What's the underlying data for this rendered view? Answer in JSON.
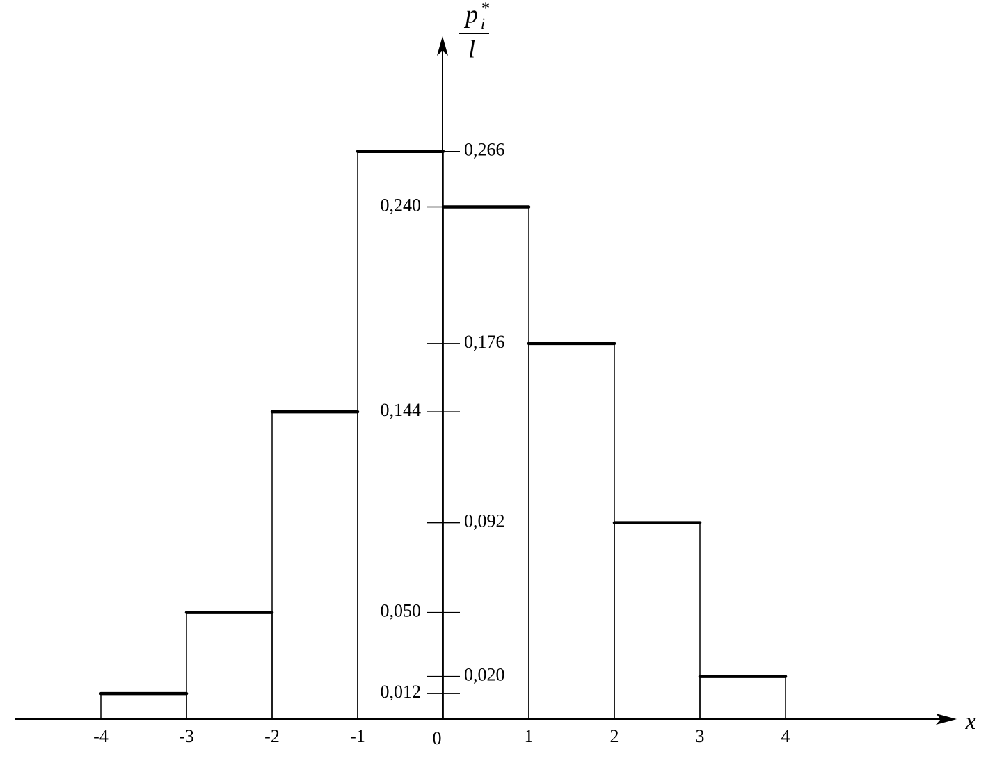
{
  "chart_data": {
    "type": "histogram",
    "bins": [
      -4,
      -3,
      -2,
      -1,
      0,
      1,
      2,
      3,
      4
    ],
    "values": [
      0.012,
      0.05,
      0.144,
      0.266,
      0.24,
      0.176,
      0.092,
      0.02
    ],
    "color": "#000000",
    "xlim": [
      -5,
      6
    ],
    "xticks": [
      -4,
      -3,
      -2,
      -1,
      0,
      1,
      2,
      3,
      4
    ],
    "ylim": [
      0,
      0.32
    ],
    "yticks": [
      {
        "value": 0.012,
        "label": "0,012"
      },
      {
        "value": 0.02,
        "label": "0,020"
      },
      {
        "value": 0.05,
        "label": "0,050"
      },
      {
        "value": 0.092,
        "label": "0,092"
      },
      {
        "value": 0.144,
        "label": "0,144"
      },
      {
        "value": 0.176,
        "label": "0,176"
      },
      {
        "value": 0.24,
        "label": "0,240"
      },
      {
        "value": 0.266,
        "label": "0,266"
      }
    ],
    "x_label": "x",
    "y_label": {
      "numerator": "p",
      "subscript": "i",
      "superscript": "*",
      "denominator": "l"
    },
    "grid": false
  }
}
